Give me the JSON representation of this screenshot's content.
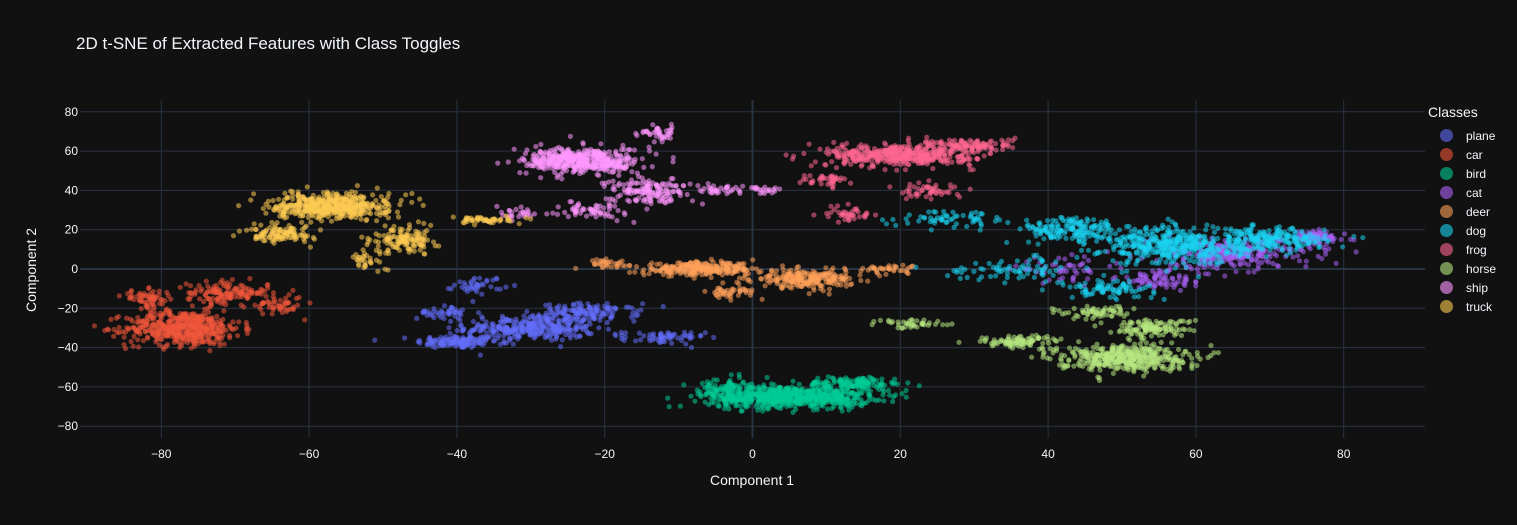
{
  "chart_data": {
    "type": "scatter",
    "title": "2D t-SNE of Extracted Features with Class Toggles",
    "xlabel": "Component 1",
    "ylabel": "Component 2",
    "xlim": [
      -91,
      91
    ],
    "ylim": [
      -86,
      86
    ],
    "xticks": [
      -80,
      -60,
      -40,
      -20,
      0,
      20,
      40,
      60,
      80
    ],
    "yticks": [
      -80,
      -60,
      -40,
      -20,
      0,
      20,
      40,
      60,
      80
    ],
    "xtick_labels": [
      "−80",
      "−60",
      "−40",
      "−20",
      "0",
      "20",
      "40",
      "60",
      "80"
    ],
    "ytick_labels": [
      "−80",
      "−60",
      "−40",
      "−20",
      "0",
      "20",
      "40",
      "60",
      "80"
    ],
    "grid": true,
    "legend_title": "Classes",
    "legend_position": "right",
    "series": [
      {
        "name": "plane",
        "color": "#636efa",
        "blobs": [
          [
            -40,
            -37,
            5,
            3,
            120
          ],
          [
            -30,
            -30,
            8,
            6,
            320
          ],
          [
            -22,
            -22,
            6,
            4,
            120
          ],
          [
            -42,
            -22,
            3,
            3,
            40
          ],
          [
            -37,
            -8,
            3,
            4,
            40
          ],
          [
            -12,
            -35,
            5,
            3,
            60
          ]
        ]
      },
      {
        "name": "car",
        "color": "#ef553b",
        "blobs": [
          [
            -77,
            -30,
            7,
            8,
            520
          ],
          [
            -71,
            -12,
            5,
            5,
            140
          ],
          [
            -82,
            -15,
            3,
            4,
            60
          ],
          [
            -64,
            -18,
            3,
            5,
            50
          ]
        ]
      },
      {
        "name": "bird",
        "color": "#00cc96",
        "blobs": [
          [
            5,
            -65,
            10,
            5,
            700
          ],
          [
            14,
            -58,
            6,
            3,
            120
          ],
          [
            -4,
            -60,
            3,
            4,
            60
          ]
        ]
      },
      {
        "name": "cat",
        "color": "#ab63fa",
        "blobs": [
          [
            65,
            8,
            10,
            7,
            260
          ],
          [
            76,
            16,
            4,
            3,
            90
          ],
          [
            56,
            -5,
            6,
            5,
            80
          ],
          [
            42,
            0,
            6,
            5,
            50
          ]
        ]
      },
      {
        "name": "deer",
        "color": "#ffa15a",
        "blobs": [
          [
            -7,
            0,
            7,
            3,
            260
          ],
          [
            7,
            -5,
            6,
            4,
            230
          ],
          [
            -3,
            -12,
            3,
            3,
            40
          ],
          [
            18,
            0,
            4,
            2,
            40
          ],
          [
            -20,
            3,
            3,
            2,
            30
          ]
        ]
      },
      {
        "name": "dog",
        "color": "#19d3f3",
        "blobs": [
          [
            57,
            12,
            9,
            9,
            420
          ],
          [
            70,
            15,
            7,
            5,
            200
          ],
          [
            43,
            20,
            6,
            6,
            150
          ],
          [
            48,
            -10,
            6,
            4,
            80
          ],
          [
            35,
            0,
            8,
            5,
            70
          ],
          [
            28,
            26,
            8,
            4,
            60
          ]
        ]
      },
      {
        "name": "frog",
        "color": "#ff6692",
        "blobs": [
          [
            20,
            58,
            9,
            5,
            450
          ],
          [
            30,
            63,
            5,
            3,
            100
          ],
          [
            10,
            45,
            3,
            3,
            40
          ],
          [
            13,
            28,
            3,
            4,
            40
          ],
          [
            24,
            40,
            4,
            4,
            50
          ]
        ]
      },
      {
        "name": "horse",
        "color": "#b6e880",
        "blobs": [
          [
            50,
            -45,
            8,
            6,
            420
          ],
          [
            54,
            -30,
            5,
            4,
            120
          ],
          [
            36,
            -37,
            5,
            3,
            90
          ],
          [
            22,
            -28,
            5,
            2,
            40
          ],
          [
            46,
            -22,
            5,
            3,
            60
          ]
        ]
      },
      {
        "name": "ship",
        "color": "#ff97ff",
        "blobs": [
          [
            -23,
            55,
            7,
            6,
            460
          ],
          [
            -14,
            40,
            5,
            6,
            150
          ],
          [
            -22,
            30,
            4,
            4,
            60
          ],
          [
            -13,
            69,
            3,
            3,
            40
          ],
          [
            -4,
            40,
            3,
            2,
            30
          ],
          [
            2,
            40,
            2,
            2,
            20
          ],
          [
            -32,
            28,
            3,
            3,
            25
          ]
        ]
      },
      {
        "name": "truck",
        "color": "#fecb52",
        "blobs": [
          [
            -57,
            32,
            7,
            6,
            480
          ],
          [
            -64,
            18,
            4,
            4,
            110
          ],
          [
            -47,
            15,
            4,
            6,
            130
          ],
          [
            -36,
            25,
            5,
            2,
            50
          ],
          [
            -52,
            5,
            2,
            4,
            30
          ]
        ]
      }
    ]
  }
}
